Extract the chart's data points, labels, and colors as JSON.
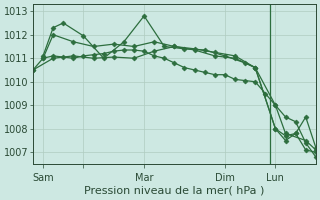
{
  "background_color": "#cde8e2",
  "plot_bg_color": "#cde8e2",
  "grid_color": "#b0ccc0",
  "line_color": "#2d6e3e",
  "xlabel": "Pression niveau de la mer( hPa )",
  "ylim": [
    1006.5,
    1013.3
  ],
  "yticks": [
    1007,
    1008,
    1009,
    1010,
    1011,
    1012,
    1013
  ],
  "xlim": [
    0,
    28
  ],
  "xtick_positions": [
    1,
    5,
    11,
    19,
    24
  ],
  "xtick_labels": [
    "Sam",
    "",
    "Mar",
    "Dim",
    "Lun"
  ],
  "series": [
    {
      "x": [
        0,
        1,
        2,
        3,
        4,
        5,
        6,
        7,
        8,
        9,
        10,
        11,
        12,
        13,
        14,
        15,
        16,
        17,
        18,
        19,
        20,
        21,
        22,
        23,
        24,
        25,
        26,
        27,
        28
      ],
      "y": [
        1010.5,
        1011.0,
        1011.1,
        1011.05,
        1011.0,
        1011.1,
        1011.15,
        1011.2,
        1011.3,
        1011.35,
        1011.35,
        1011.3,
        1011.1,
        1011.0,
        1010.8,
        1010.6,
        1010.5,
        1010.4,
        1010.3,
        1010.3,
        1010.1,
        1010.05,
        1010.0,
        1009.5,
        1009.0,
        1008.5,
        1008.3,
        1007.4,
        1006.8
      ]
    },
    {
      "x": [
        1,
        2,
        3,
        5,
        7,
        9,
        11,
        13,
        15,
        17,
        19,
        21,
        22,
        24,
        25,
        27,
        28
      ],
      "y": [
        1011.1,
        1012.3,
        1012.5,
        1011.95,
        1011.0,
        1011.7,
        1012.8,
        1011.5,
        1011.4,
        1011.35,
        1011.1,
        1010.8,
        1010.6,
        1009.0,
        1007.8,
        1007.5,
        1007.1
      ]
    },
    {
      "x": [
        1,
        2,
        4,
        6,
        8,
        10,
        12,
        14,
        16,
        18,
        20,
        22,
        24,
        25,
        26,
        27,
        28
      ],
      "y": [
        1011.0,
        1012.0,
        1011.7,
        1011.5,
        1011.6,
        1011.5,
        1011.7,
        1011.5,
        1011.35,
        1011.1,
        1011.0,
        1010.6,
        1008.0,
        1007.7,
        1007.8,
        1008.5,
        1007.2
      ]
    },
    {
      "x": [
        0,
        2,
        4,
        6,
        8,
        10,
        12,
        14,
        16,
        18,
        20,
        22,
        24,
        25,
        26,
        27,
        28
      ],
      "y": [
        1010.5,
        1011.0,
        1011.1,
        1011.0,
        1011.05,
        1011.0,
        1011.3,
        1011.5,
        1011.4,
        1011.25,
        1011.1,
        1010.6,
        1008.0,
        1007.5,
        1007.8,
        1007.1,
        1007.0
      ]
    }
  ],
  "vline_x": 23.5,
  "vline_color": "#2d6e3e",
  "xlabel_fontsize": 8,
  "ytick_fontsize": 7,
  "xtick_fontsize": 7
}
